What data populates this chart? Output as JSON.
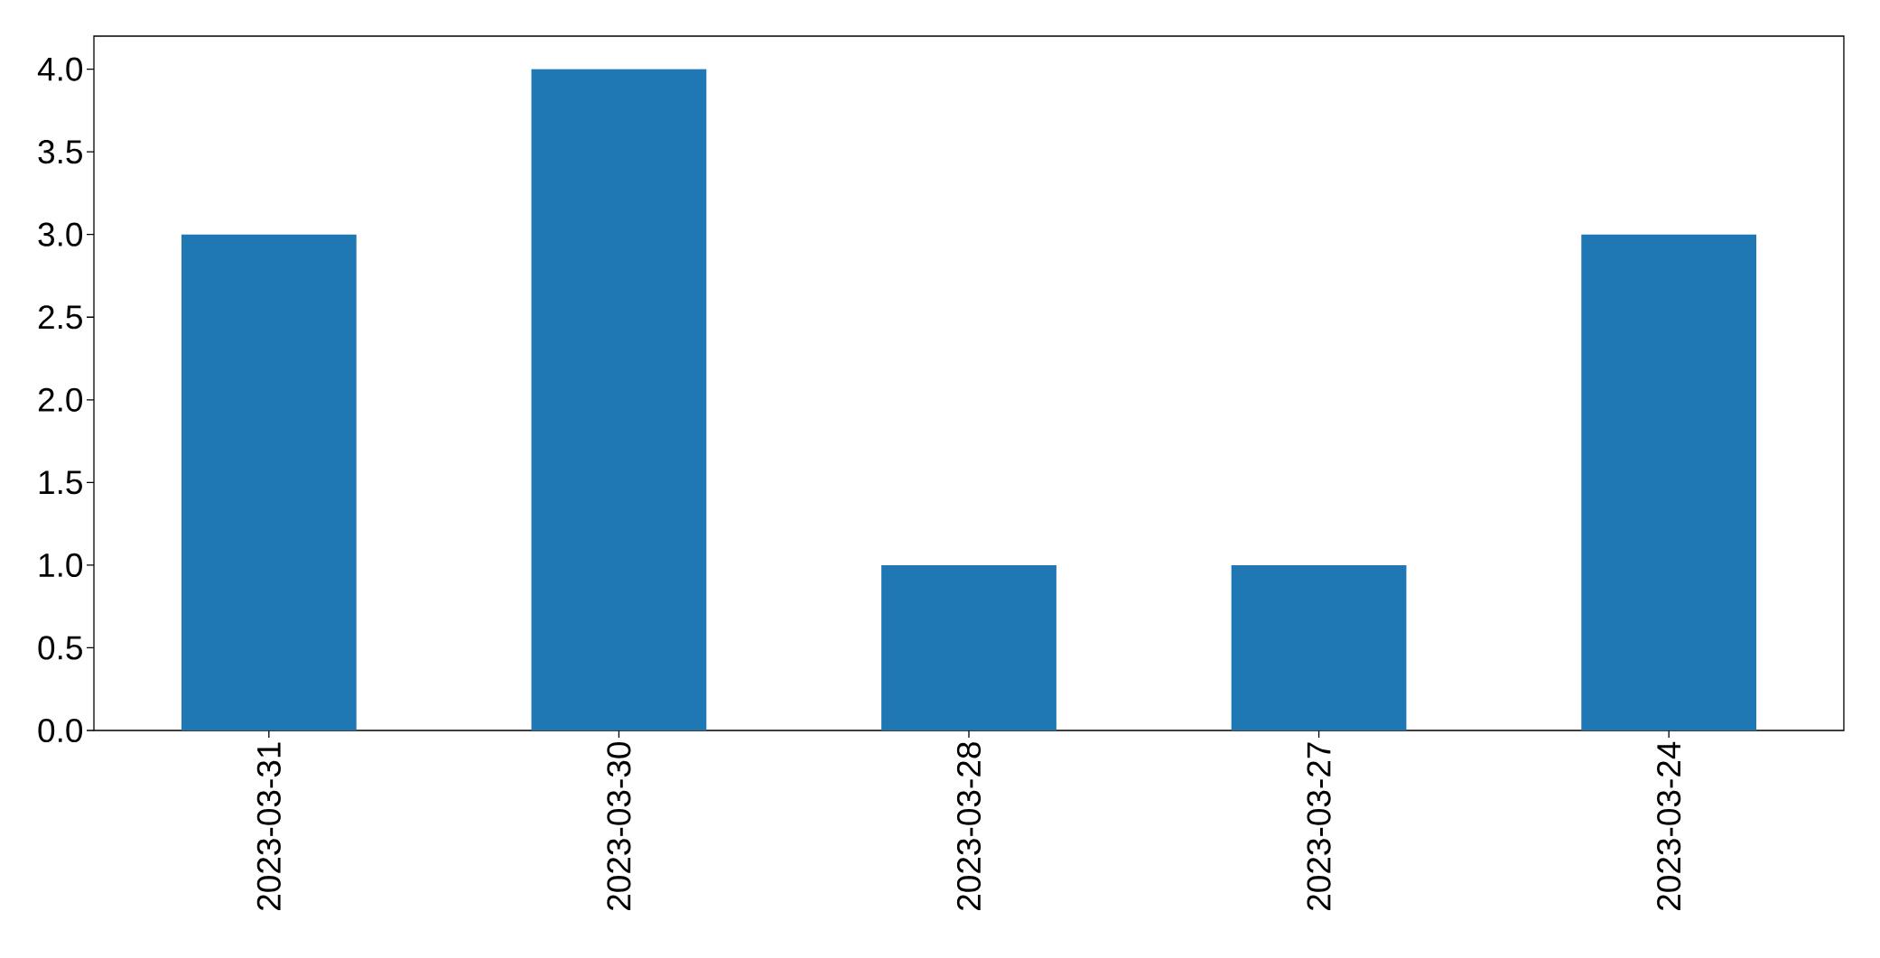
{
  "chart_data": {
    "type": "bar",
    "categories": [
      "2023-03-31",
      "2023-03-30",
      "2023-03-28",
      "2023-03-27",
      "2023-03-24"
    ],
    "values": [
      3,
      4,
      1,
      1,
      3
    ],
    "color": "#1f77b4",
    "ylim": [
      0,
      4.2
    ],
    "yticks": [
      {
        "value": 0,
        "label": "0.0"
      },
      {
        "value": 0.5,
        "label": "0.5"
      },
      {
        "value": 1,
        "label": "1.0"
      },
      {
        "value": 1.5,
        "label": "1.5"
      },
      {
        "value": 2,
        "label": "2.0"
      },
      {
        "value": 2.5,
        "label": "2.5"
      },
      {
        "value": 3,
        "label": "3.0"
      },
      {
        "value": 3.5,
        "label": "3.5"
      },
      {
        "value": 4,
        "label": "4.0"
      }
    ]
  }
}
